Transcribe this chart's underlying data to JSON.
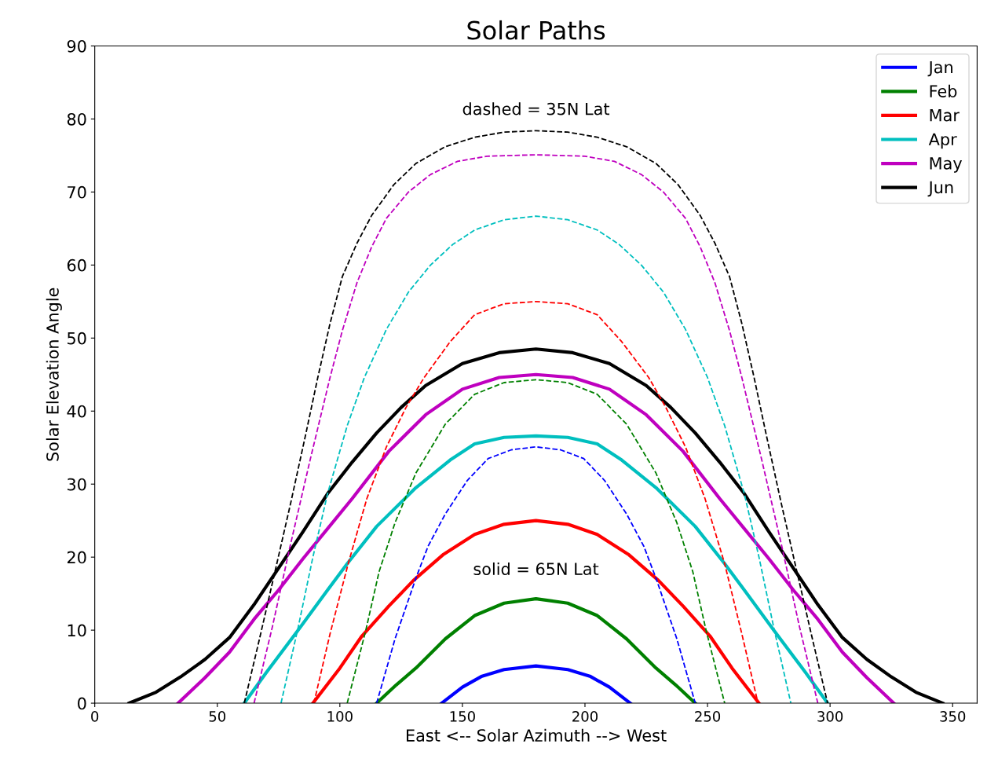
{
  "chart_data": {
    "type": "line",
    "title": "Solar Paths",
    "xlabel": "East <-- Solar Azimuth --> West",
    "ylabel": "Solar Elevation Angle",
    "xlim": [
      0,
      360
    ],
    "xticks": [
      0,
      50,
      100,
      150,
      200,
      250,
      300,
      350
    ],
    "ylim": [
      0,
      90
    ],
    "yticks": [
      0,
      10,
      20,
      30,
      40,
      50,
      60,
      70,
      80,
      90
    ],
    "grid": false,
    "legend": "top right",
    "marker": "none",
    "annotations": [
      "dashed = 35N Lat",
      "solid = 65N Lat"
    ],
    "series": [
      {
        "name": "Jan",
        "color": "#0000ff",
        "line_style": "solid",
        "x": [
          141.5,
          150,
          158,
          167,
          180,
          193,
          202,
          210,
          218.5
        ],
        "values": [
          0,
          2.2,
          3.7,
          4.6,
          5.1,
          4.6,
          3.7,
          2.2,
          0
        ]
      },
      {
        "name": "Feb",
        "color": "#008000",
        "line_style": "solid",
        "x": [
          115,
          123,
          131,
          143,
          155,
          167,
          180,
          193,
          205,
          217,
          229,
          237,
          245
        ],
        "values": [
          0,
          2.5,
          4.8,
          8.8,
          12,
          13.7,
          14.3,
          13.7,
          12,
          8.8,
          4.8,
          2.5,
          0
        ]
      },
      {
        "name": "Mar",
        "color": "#ff0000",
        "line_style": "solid",
        "x": [
          89,
          100,
          109,
          120,
          130,
          142,
          155,
          167,
          180,
          193,
          205,
          218,
          230,
          240,
          251,
          260,
          271
        ],
        "values": [
          0,
          4.8,
          9.2,
          13.3,
          16.8,
          20.3,
          23.1,
          24.5,
          25,
          24.5,
          23.1,
          20.3,
          16.8,
          13.3,
          9.2,
          4.8,
          0
        ]
      },
      {
        "name": "Apr",
        "color": "#00bfbf",
        "line_style": "solid",
        "x": [
          61,
          70,
          83,
          95,
          103,
          115,
          131,
          145,
          155,
          167,
          180,
          193,
          205,
          215,
          229,
          245,
          257,
          265,
          277,
          290,
          299
        ],
        "values": [
          0,
          4.2,
          10,
          15.5,
          19.1,
          24.2,
          29.5,
          33.3,
          35.5,
          36.4,
          36.6,
          36.4,
          35.5,
          33.3,
          29.5,
          24.2,
          19.1,
          15.5,
          10,
          4.2,
          0
        ]
      },
      {
        "name": "May",
        "color": "#bf00bf",
        "line_style": "solid",
        "x": [
          34,
          45,
          55,
          65,
          75,
          85,
          95,
          105,
          120,
          135,
          150,
          165,
          180,
          195,
          210,
          225,
          240,
          255,
          265,
          275,
          285,
          295,
          305,
          315,
          326
        ],
        "values": [
          0,
          3.5,
          7,
          11.5,
          15.5,
          19.8,
          23.9,
          28,
          34.5,
          39.5,
          43,
          44.6,
          45,
          44.6,
          43,
          39.5,
          34.5,
          28,
          23.9,
          19.8,
          15.5,
          11.5,
          7,
          3.5,
          0
        ]
      },
      {
        "name": "Jun",
        "color": "#000000",
        "line_style": "solid",
        "x": [
          14,
          25,
          35,
          45,
          55,
          65,
          75,
          85,
          95,
          105,
          115,
          125,
          135,
          150,
          165,
          180,
          195,
          210,
          225,
          235,
          245,
          255,
          265,
          275,
          285,
          295,
          305,
          315,
          325,
          335,
          346
        ],
        "values": [
          0,
          1.5,
          3.6,
          6,
          9,
          13.5,
          18.5,
          23.5,
          28.7,
          33,
          37,
          40.5,
          43.5,
          46.5,
          48,
          48.5,
          48,
          46.5,
          43.5,
          40.5,
          37,
          33,
          28.7,
          23.5,
          18.5,
          13.5,
          9,
          6,
          3.6,
          1.5,
          0
        ]
      },
      {
        "color": "#0000ff",
        "line_style": "dashed",
        "x": [
          115,
          122.5,
          131,
          136,
          143,
          152,
          160.5,
          170,
          180,
          190,
          199.5,
          208,
          217,
          224,
          229,
          237.5,
          245
        ],
        "values": [
          0,
          8.8,
          17.1,
          21.5,
          25.9,
          30.5,
          33.5,
          34.7,
          35.1,
          34.7,
          33.5,
          30.5,
          25.9,
          21.5,
          17.1,
          8.8,
          0
        ]
      },
      {
        "color": "#008000",
        "line_style": "dashed",
        "x": [
          103,
          110.6,
          116,
          122.5,
          131,
          143,
          155,
          167,
          180,
          193,
          205,
          217,
          229,
          237.5,
          244,
          249.4,
          257
        ],
        "values": [
          0,
          10,
          18,
          24.7,
          31.5,
          38.2,
          42.3,
          43.9,
          44.3,
          43.9,
          42.3,
          38.2,
          31.5,
          24.7,
          18,
          10,
          0
        ]
      },
      {
        "color": "#ff0000",
        "line_style": "dashed",
        "x": [
          89.4,
          96,
          103.4,
          111,
          119,
          127,
          134.4,
          145,
          155,
          167,
          180,
          193,
          205,
          215,
          226,
          233,
          241,
          249,
          257,
          264,
          270.6
        ],
        "values": [
          0,
          9.5,
          19.1,
          28,
          35.1,
          40.5,
          44.6,
          49.5,
          53.2,
          54.7,
          55,
          54.7,
          53.2,
          49.5,
          44.6,
          40.5,
          35.1,
          28,
          19.1,
          9.5,
          0
        ]
      },
      {
        "color": "#00bfbf",
        "line_style": "dashed",
        "x": [
          76,
          83,
          89,
          95,
          103,
          110,
          119,
          128,
          137,
          146,
          155,
          167,
          180,
          193,
          205,
          214,
          223,
          232,
          241,
          250,
          257,
          265,
          271,
          277,
          284
        ],
        "values": [
          0,
          10.4,
          20,
          28.7,
          38,
          44.6,
          51.2,
          56.3,
          60,
          62.8,
          64.8,
          66.2,
          66.7,
          66.2,
          64.8,
          62.8,
          60,
          56.3,
          51.2,
          44.6,
          38,
          28.7,
          20,
          10.4,
          0
        ]
      },
      {
        "color": "#bf00bf",
        "line_style": "dashed",
        "x": [
          65,
          72.5,
          79.7,
          88,
          96,
          101,
          107,
          113,
          119,
          128,
          137,
          148,
          160,
          180,
          200,
          212,
          223,
          232,
          241,
          247,
          253,
          259,
          264,
          272,
          280.3,
          287.5,
          295
        ],
        "values": [
          0,
          10.5,
          21.5,
          33.5,
          44.6,
          51,
          57.6,
          62.5,
          66.4,
          70,
          72.4,
          74.2,
          74.9,
          75.1,
          74.9,
          74.2,
          72.4,
          70,
          66.4,
          62.5,
          57.6,
          51,
          44.6,
          33.5,
          21.5,
          10.5,
          0
        ]
      },
      {
        "color": "#000000",
        "line_style": "dashed",
        "x": [
          61,
          67,
          74,
          80,
          86,
          91,
          96,
          101,
          107,
          113,
          122,
          131,
          143,
          155,
          167,
          180,
          193,
          205,
          217,
          229,
          238,
          247,
          253,
          259,
          264,
          269,
          274,
          280,
          286,
          293,
          299
        ],
        "values": [
          0,
          8.5,
          18.7,
          27.5,
          36.7,
          44.6,
          52,
          58.4,
          63,
          66.8,
          71,
          73.9,
          76.2,
          77.5,
          78.2,
          78.4,
          78.2,
          77.5,
          76.2,
          73.9,
          71,
          66.8,
          63,
          58.4,
          52,
          44.6,
          36.7,
          27.5,
          18.7,
          8.5,
          0
        ]
      }
    ]
  }
}
